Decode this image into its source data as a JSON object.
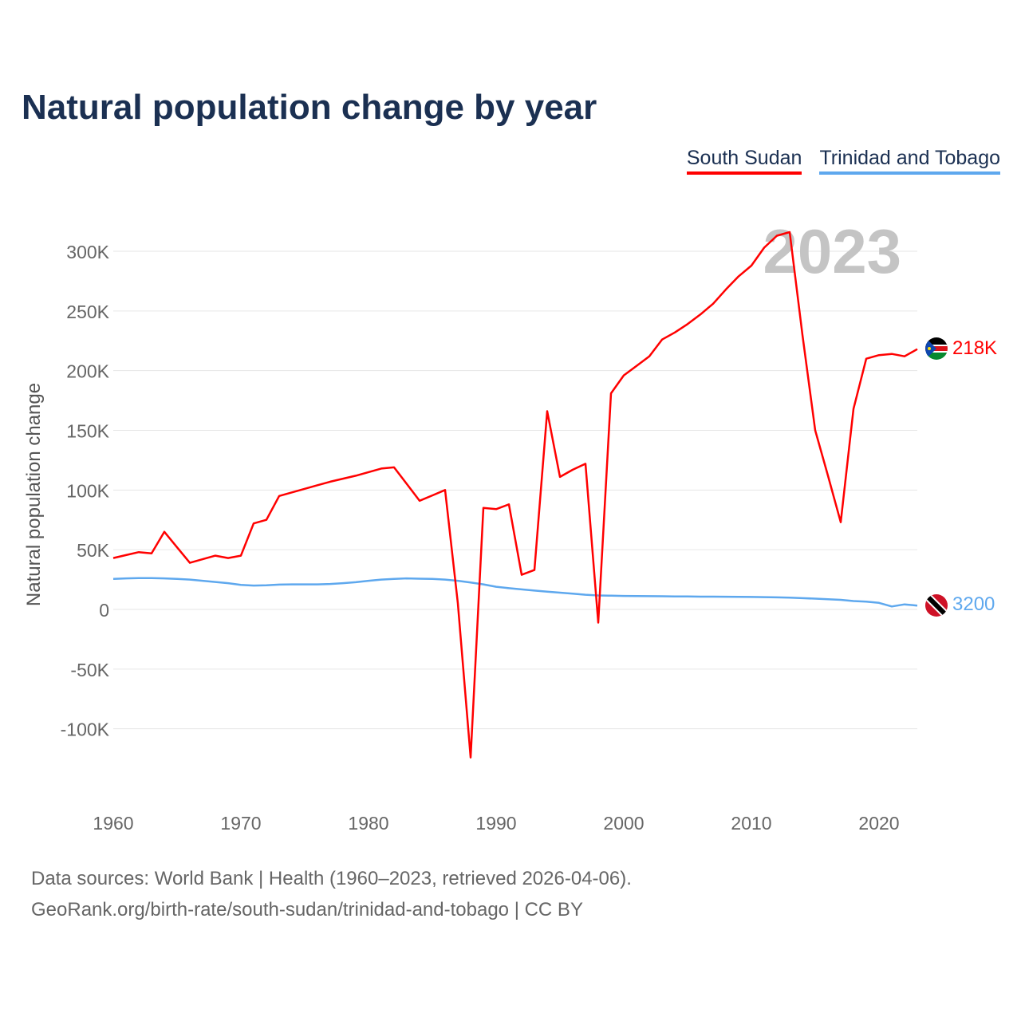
{
  "title": "Natural population change by year",
  "footer": {
    "line1": "Data sources: World Bank | Health (1960–2023, retrieved 2026-04-06).",
    "line2": "GeoRank.org/birth-rate/south-sudan/trinidad-and-tobago | CC BY"
  },
  "chart_data": {
    "type": "line",
    "title": "Natural population change by year",
    "xlabel": "",
    "ylabel": "Natural population change",
    "year_watermark": "2023",
    "xlim": [
      1960,
      2023
    ],
    "ylim": [
      -150000,
      330000
    ],
    "x_ticks": [
      1960,
      1970,
      1980,
      1990,
      2000,
      2010,
      2020
    ],
    "x_tick_labels": [
      "1960",
      "1970",
      "1980",
      "1990",
      "2000",
      "2010",
      "2020"
    ],
    "y_ticks": [
      -100000,
      -50000,
      0,
      50000,
      100000,
      150000,
      200000,
      250000,
      300000
    ],
    "y_tick_labels": [
      "-100K",
      "-50K",
      "0",
      "50K",
      "100K",
      "150K",
      "200K",
      "250K",
      "300K"
    ],
    "grid": true,
    "legend_placement": "top-right",
    "x": [
      1960,
      1961,
      1962,
      1963,
      1964,
      1965,
      1966,
      1967,
      1968,
      1969,
      1970,
      1971,
      1972,
      1973,
      1974,
      1975,
      1976,
      1977,
      1978,
      1979,
      1980,
      1981,
      1982,
      1983,
      1984,
      1985,
      1986,
      1987,
      1988,
      1989,
      1990,
      1991,
      1992,
      1993,
      1994,
      1995,
      1996,
      1997,
      1998,
      1999,
      2000,
      2001,
      2002,
      2003,
      2004,
      2005,
      2006,
      2007,
      2008,
      2009,
      2010,
      2011,
      2012,
      2013,
      2014,
      2015,
      2016,
      2017,
      2018,
      2019,
      2020,
      2021,
      2022,
      2023
    ],
    "series": [
      {
        "name": "South Sudan",
        "color": "#ff0000",
        "end_label": "218K",
        "values": [
          43000,
          45500,
          48000,
          47000,
          65000,
          52000,
          39000,
          42000,
          45000,
          43000,
          45000,
          72000,
          75000,
          95000,
          98000,
          101000,
          104000,
          107000,
          109500,
          112000,
          115000,
          118000,
          119000,
          105000,
          91000,
          95500,
          100000,
          5000,
          -124000,
          85000,
          84000,
          88000,
          29000,
          33000,
          166000,
          111000,
          117000,
          122000,
          -11000,
          181000,
          196000,
          204000,
          212000,
          226000,
          232000,
          239000,
          247000,
          256000,
          268000,
          279000,
          288000,
          303000,
          313000,
          316000,
          230000,
          150000,
          112000,
          73000,
          168000,
          210000,
          213000,
          214000,
          212000,
          218000
        ]
      },
      {
        "name": "Trinidad and Tobago",
        "color": "#5ea8ee",
        "end_label": "3200",
        "values": [
          25500,
          26000,
          26200,
          26200,
          26000,
          25500,
          25000,
          24000,
          23000,
          22000,
          20500,
          20000,
          20200,
          20800,
          21000,
          21000,
          21000,
          21300,
          22000,
          22800,
          24000,
          25000,
          25500,
          26000,
          25700,
          25500,
          25000,
          24000,
          22500,
          21000,
          19000,
          17800,
          16800,
          15800,
          14800,
          14000,
          13200,
          12300,
          11700,
          11500,
          11300,
          11200,
          11100,
          11000,
          10900,
          10800,
          10700,
          10700,
          10600,
          10500,
          10400,
          10300,
          10100,
          9800,
          9400,
          9000,
          8500,
          8000,
          7000,
          6500,
          5500,
          2500,
          4200,
          3200
        ]
      }
    ]
  }
}
